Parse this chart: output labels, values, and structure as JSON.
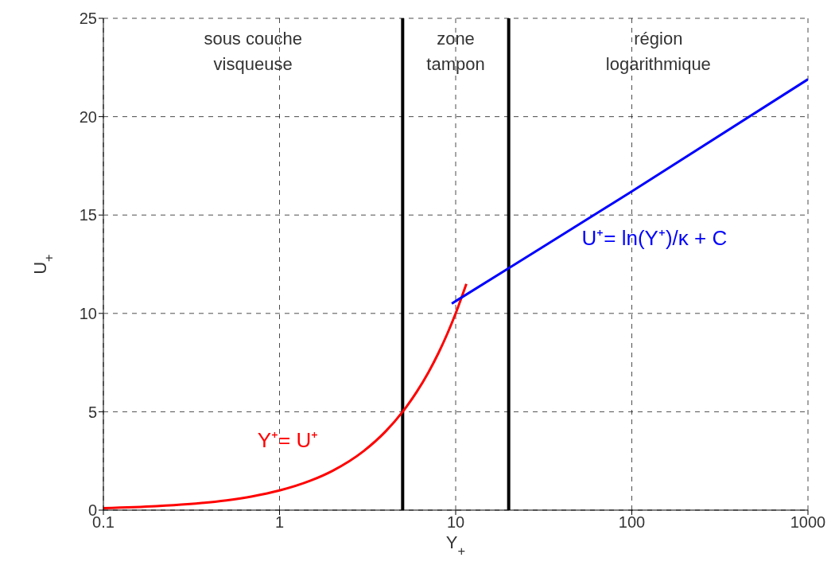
{
  "chart_data": {
    "type": "line",
    "xlabel": "Y$_{+}$",
    "ylabel": "U$_{+}$",
    "log": "x",
    "xlim": [
      0.1,
      1000
    ],
    "xticks": [
      0.1,
      1,
      10,
      100,
      1000
    ],
    "ylim": [
      0,
      25
    ],
    "yticks": [
      0,
      5,
      10,
      15,
      20,
      25
    ],
    "grid": true,
    "marker": "none",
    "line_style": "solid",
    "series": [
      {
        "name": "Y⁺= U⁺",
        "color": "#ff0000",
        "x": [
          0.1,
          0.2,
          0.3,
          0.5,
          0.7,
          1,
          1.5,
          2,
          3,
          4,
          5,
          6,
          7,
          8,
          9,
          10,
          11.5
        ],
        "values": [
          0.1,
          0.2,
          0.3,
          0.5,
          0.7,
          1,
          1.5,
          2,
          3,
          4,
          5,
          6,
          7,
          8,
          9,
          10,
          11.5
        ]
      },
      {
        "name": "U⁺= ln(Y⁺)/κ + C",
        "color": "#0000ff",
        "x": [
          9.5,
          20,
          100,
          1000
        ],
        "values": [
          10.5,
          12.3,
          16.2,
          21.9
        ]
      }
    ],
    "ref_lines": [
      {
        "axis": "x",
        "value": 5,
        "color": "#000000"
      },
      {
        "axis": "x",
        "value": 20,
        "color": "#000000"
      }
    ],
    "annotations": [
      "sous couche\nvisqueuse",
      "zone\ntampon",
      "région\nlogarithmique"
    ]
  }
}
